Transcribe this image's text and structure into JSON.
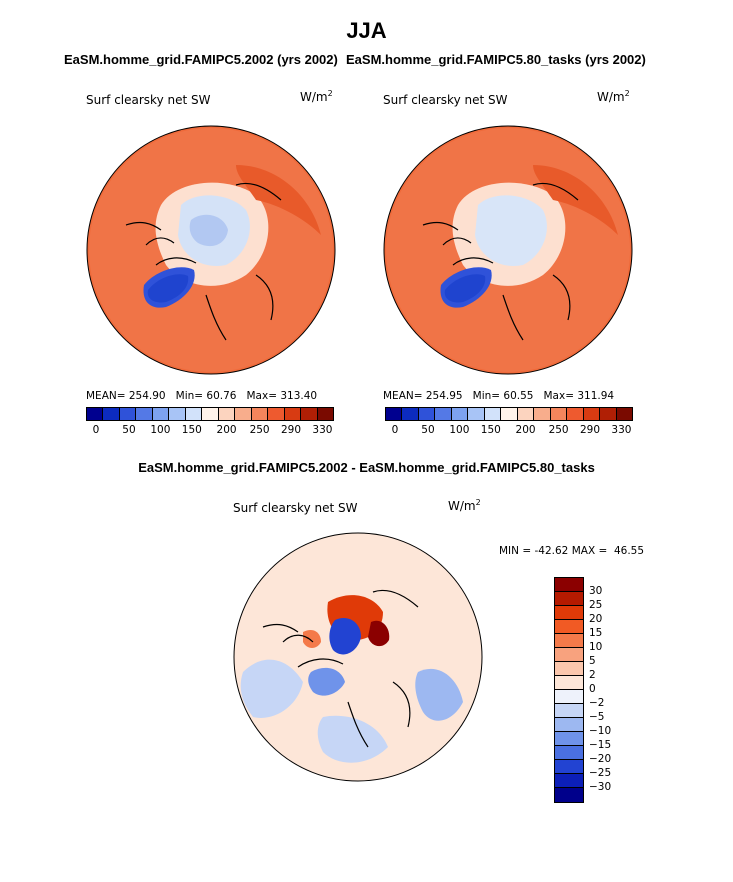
{
  "page_title": "JJA",
  "panels": [
    {
      "title": "EaSM.homme_grid.FAMIPC5.2002 (yrs 2002)",
      "variable_label": "Surf clearsky net SW",
      "units": "W/m2",
      "mean_label": "MEAN=",
      "mean": "254.90",
      "min_label": "Min=",
      "min": "60.76",
      "max_label": "Max=",
      "max": "313.40"
    },
    {
      "title": "EaSM.homme_grid.FAMIPC5.80_tasks (yrs 2002)",
      "variable_label": "Surf clearsky net SW",
      "units": "W/m2",
      "mean_label": "MEAN=",
      "mean": "254.95",
      "min_label": "Min=",
      "min": "60.55",
      "max_label": "Max=",
      "max": "311.94"
    }
  ],
  "diff_panel": {
    "title": "EaSM.homme_grid.FAMIPC5.2002 - EaSM.homme_grid.FAMIPC5.80_tasks",
    "variable_label": "Surf clearsky net SW",
    "units": "W/m2",
    "min_label": "MIN =",
    "min": "-42.62",
    "max_label": "MAX =",
    "max": "46.55"
  },
  "chart_data": [
    {
      "type": "heatmap",
      "projection": "north-polar-stereographic",
      "title": "EaSM.homme_grid.FAMIPC5.2002 (yrs 2002)",
      "variable": "Surf clearsky net SW",
      "units": "W/m2",
      "stats": {
        "mean": 254.9,
        "min": 60.76,
        "max": 313.4
      },
      "colorbar": {
        "orientation": "horizontal",
        "tick_labels": [
          "0",
          "50",
          "100",
          "150",
          "200",
          "250",
          "290",
          "330"
        ],
        "colors": [
          "#00008f",
          "#0c2bbf",
          "#2f52d9",
          "#5479e6",
          "#7da2f0",
          "#a8c4f6",
          "#d2e2fa",
          "#fff3ea",
          "#fcd4bf",
          "#f8ad8c",
          "#f4855c",
          "#ee5a2f",
          "#d83b12",
          "#b01f05",
          "#7a0a00"
        ]
      }
    },
    {
      "type": "heatmap",
      "projection": "north-polar-stereographic",
      "title": "EaSM.homme_grid.FAMIPC5.80_tasks (yrs 2002)",
      "variable": "Surf clearsky net SW",
      "units": "W/m2",
      "stats": {
        "mean": 254.95,
        "min": 60.55,
        "max": 311.94
      },
      "colorbar": {
        "orientation": "horizontal",
        "tick_labels": [
          "0",
          "50",
          "100",
          "150",
          "200",
          "250",
          "290",
          "330"
        ],
        "colors": [
          "#00008f",
          "#0c2bbf",
          "#2f52d9",
          "#5479e6",
          "#7da2f0",
          "#a8c4f6",
          "#d2e2fa",
          "#fff3ea",
          "#fcd4bf",
          "#f8ad8c",
          "#f4855c",
          "#ee5a2f",
          "#d83b12",
          "#b01f05",
          "#7a0a00"
        ]
      }
    },
    {
      "type": "heatmap",
      "projection": "north-polar-stereographic",
      "title": "EaSM.homme_grid.FAMIPC5.2002 - EaSM.homme_grid.FAMIPC5.80_tasks",
      "variable": "Surf clearsky net SW",
      "units": "W/m2",
      "stats": {
        "min": -42.62,
        "max": 46.55
      },
      "colorbar": {
        "orientation": "vertical",
        "tick_labels": [
          "30",
          "25",
          "20",
          "15",
          "10",
          "5",
          "2",
          "0",
          "−2",
          "−5",
          "−10",
          "−15",
          "−20",
          "−25",
          "−30"
        ],
        "colors": [
          "#8b0000",
          "#b51a00",
          "#e03a08",
          "#f15a24",
          "#f47a4a",
          "#f8a27e",
          "#fbc7ad",
          "#fde6d8",
          "#eef2fb",
          "#c6d6f6",
          "#9db8f1",
          "#6f93ea",
          "#4a70e1",
          "#2243d2",
          "#0c1fb8",
          "#00008b"
        ]
      }
    }
  ]
}
